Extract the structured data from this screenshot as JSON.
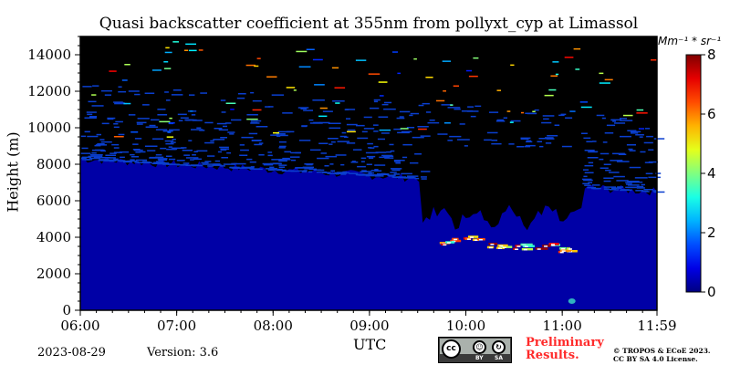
{
  "chart_data": {
    "type": "heatmap",
    "title": "Quasi backscatter coefficient at 355nm from pollyxt_cyp at Limassol",
    "xlabel": "UTC",
    "ylabel": "Height (m)",
    "x_tick_labels": [
      "06:00",
      "07:00",
      "08:00",
      "09:00",
      "10:00",
      "11:00",
      "11:59"
    ],
    "x_ticks_hours": [
      6.0,
      7.0,
      8.0,
      9.0,
      10.0,
      11.0,
      11.983
    ],
    "xlim_hours": [
      6.0,
      11.983
    ],
    "y_ticks": [
      0,
      2000,
      4000,
      6000,
      8000,
      10000,
      12000,
      14000
    ],
    "ylim": [
      0,
      15000
    ],
    "colorbar": {
      "label": "Mm^-1 * sr^-1",
      "label_display": "Mm⁻¹ * sr⁻¹",
      "ticks": [
        0,
        2,
        4,
        6,
        8
      ],
      "range": [
        0,
        8
      ],
      "colormap": "jet"
    },
    "background_color": "#000000",
    "regions": [
      {
        "name": "boundary-layer-low-signal",
        "value": 0.3,
        "color": "#0a40d8",
        "x_hours_start": 6.0,
        "x_hours_end": 11.983,
        "top_height_m_at_start": 8300,
        "top_height_m_at_end": 6500
      },
      {
        "name": "aerosol-layer-peaks",
        "x_hours": [
          9.75,
          10.0,
          10.25,
          10.5,
          10.75,
          11.0
        ],
        "height_m": [
          3800,
          3900,
          3600,
          3500,
          3500,
          3300
        ],
        "value": 6
      }
    ]
  },
  "footer": {
    "date": "2023-08-29",
    "version": "Version: 3.6",
    "license_badge_top": "cc",
    "license_badge_by": "BY",
    "license_badge_sa": "SA",
    "preliminary_line1": "Preliminary",
    "preliminary_line2": "Results.",
    "copyright_line1": "© TROPOS & ECoE 2023.",
    "copyright_line2": "CC BY SA 4.0 License."
  },
  "colors": {
    "low": "#0a40d8",
    "no_data": "#000000",
    "preliminary": "#ff2a2a"
  }
}
